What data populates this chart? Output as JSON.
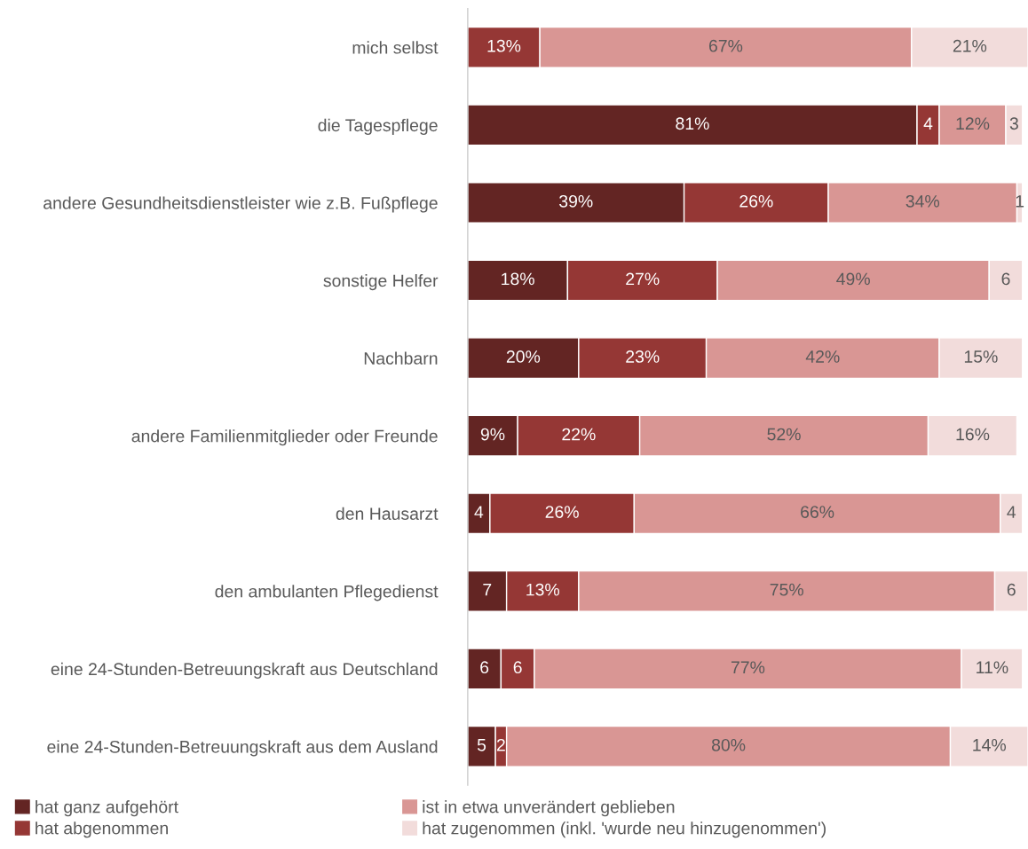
{
  "chart_data": {
    "type": "bar",
    "orientation": "horizontal",
    "stacked": true,
    "categories": [
      "mich selbst",
      "die Tagespflege",
      "andere Gesundheitsdienstleister wie z.B. Fußpflege",
      "sonstige Helfer",
      "Nachbarn",
      "andere Familienmitglieder oder Freunde",
      "den Hausarzt",
      "den ambulanten Pflegedienst",
      "eine 24-Stunden-Betreuungskraft aus Deutschland",
      "eine 24-Stunden-Betreuungskraft aus dem Ausland"
    ],
    "series": [
      {
        "name": "hat ganz aufgehört",
        "color": "#632523",
        "values": [
          null,
          81,
          39,
          18,
          20,
          9,
          4,
          7,
          6,
          5
        ],
        "value_labels": [
          null,
          "81%",
          "39%",
          "18%",
          "20%",
          "9%",
          "4",
          "7",
          "6",
          "5"
        ]
      },
      {
        "name": "hat abgenommen",
        "color": "#953735",
        "values": [
          13,
          4,
          26,
          27,
          23,
          22,
          26,
          13,
          6,
          2
        ],
        "value_labels": [
          "13%",
          "4",
          "26%",
          "27%",
          "23%",
          "22%",
          "26%",
          "13%",
          "6",
          "2"
        ]
      },
      {
        "name": "ist in etwa unverändert geblieben",
        "color": "#d99694",
        "values": [
          67,
          12,
          34,
          49,
          42,
          52,
          66,
          75,
          77,
          80
        ],
        "value_labels": [
          "67%",
          "12%",
          "34%",
          "49%",
          "42%",
          "52%",
          "66%",
          "75%",
          "77%",
          "80%"
        ]
      },
      {
        "name": "hat zugenommen (inkl. 'wurde neu hinzugenommen')",
        "color": "#f2dcdb",
        "values": [
          21,
          3,
          1,
          6,
          15,
          16,
          4,
          6,
          11,
          14
        ],
        "value_labels": [
          "21%",
          "3",
          "1",
          "6",
          "15%",
          "16%",
          "4",
          "6",
          "11%",
          "14%"
        ]
      }
    ],
    "tick_labels": "y",
    "grid": false,
    "legend": "bottom"
  }
}
